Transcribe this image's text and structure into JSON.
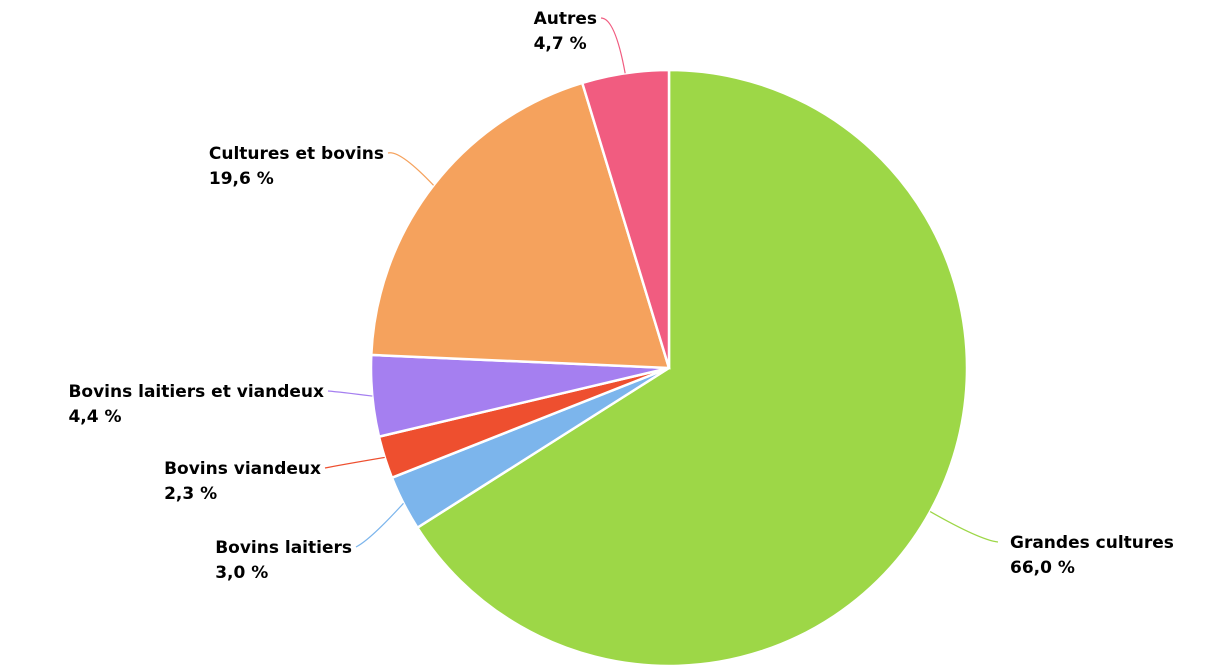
{
  "chart_data": {
    "type": "pie",
    "start": "12 o'clock",
    "direction": "clockwise",
    "slices": [
      {
        "label": "Grandes cultures",
        "value": 66.0,
        "value_label": "66,0 %",
        "color": "#9dd747"
      },
      {
        "label": "Bovins laitiers",
        "value": 3.0,
        "value_label": "3,0 %",
        "color": "#7cb5ec"
      },
      {
        "label": "Bovins viandeux",
        "value": 2.3,
        "value_label": "2,3 %",
        "color": "#ee4f2f"
      },
      {
        "label": "Bovins laitiers et viandeux",
        "value": 4.4,
        "value_label": "4,4 %",
        "color": "#a57ff0"
      },
      {
        "label": "Cultures et bovins",
        "value": 19.6,
        "value_label": "19,6 %",
        "color": "#f5a25d"
      },
      {
        "label": "Autres",
        "value": 4.7,
        "value_label": "4,7 %",
        "color": "#f15c80"
      }
    ]
  }
}
